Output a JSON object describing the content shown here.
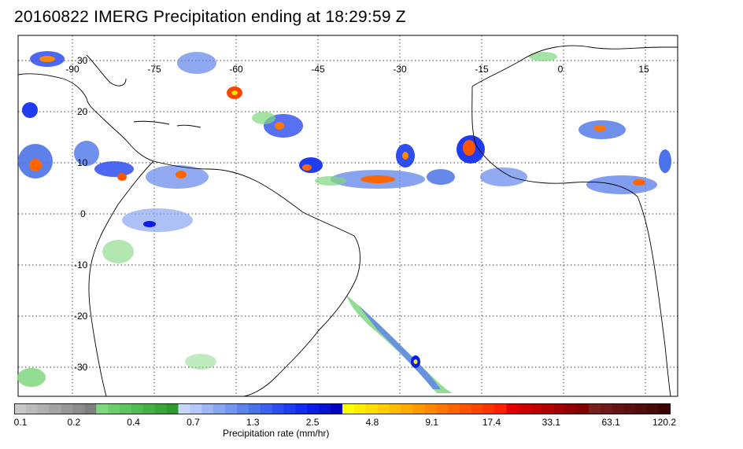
{
  "title": "20160822 IMERG Precipitation ending at 18:29:59 Z",
  "map": {
    "lon_labels": [
      "-90",
      "-75",
      "-60",
      "-45",
      "-30",
      "-15",
      "0",
      "15"
    ],
    "lat_labels": [
      "30",
      "20",
      "10",
      "0",
      "-10",
      "-20",
      "-30"
    ],
    "grid_style": "dotted",
    "coastline_color": "#000000"
  },
  "colorbar": {
    "title": "Precipitation rate (mm/hr)",
    "tick_labels": [
      "0.1",
      "0.2",
      "0.4",
      "0.7",
      "1.3",
      "2.5",
      "4.8",
      "9.1",
      "17.4",
      "33.1",
      "63.1",
      "120.2"
    ],
    "colors": [
      "#c8c8c8",
      "#bcbcbc",
      "#b0b0b0",
      "#a4a4a4",
      "#989898",
      "#8c8c8c",
      "#808080",
      "#7fd77f",
      "#6ccf6c",
      "#5ec55e",
      "#50bb50",
      "#44b144",
      "#3aa63a",
      "#2f9b2f",
      "#c8d8ff",
      "#b4c8fb",
      "#9fb7f7",
      "#8aa6f3",
      "#7595ef",
      "#6084eb",
      "#4b73e7",
      "#3c60f0",
      "#2e4ef0",
      "#203cf0",
      "#142cf0",
      "#0a1ee6",
      "#0414d2",
      "#0000c0",
      "#ffff00",
      "#ffee00",
      "#ffdd00",
      "#ffcc00",
      "#ffbb00",
      "#ffaa00",
      "#ff9900",
      "#ff8800",
      "#ff7700",
      "#ff6600",
      "#ff5500",
      "#ff4400",
      "#ff3300",
      "#ff2000",
      "#e00000",
      "#d00000",
      "#c00000",
      "#b00000",
      "#a00000",
      "#900000",
      "#800000",
      "#782020",
      "#6e1a1a",
      "#641414",
      "#5a1010",
      "#500c0c",
      "#460808",
      "#3c0404"
    ]
  }
}
